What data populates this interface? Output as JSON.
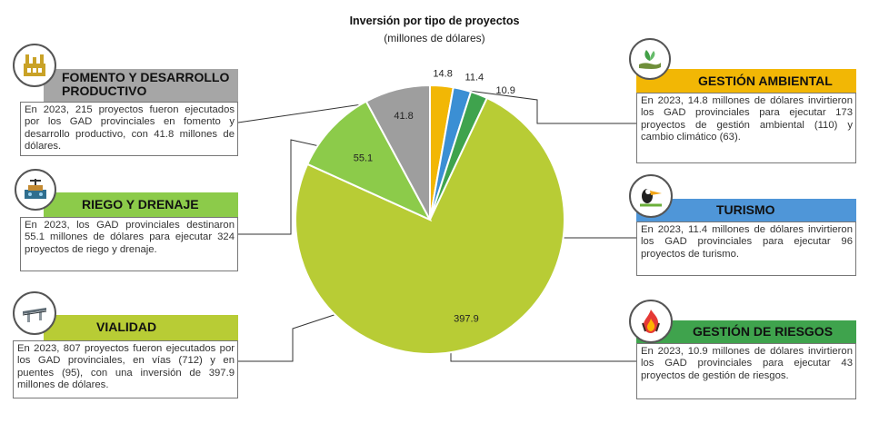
{
  "chart_data": {
    "type": "pie",
    "title": "Inversión por tipo de proyectos",
    "subtitle": "(millones de dólares)",
    "slices": [
      {
        "category": "Gestión Ambiental",
        "value": 14.8,
        "label": "14.8",
        "color": "#F2B705"
      },
      {
        "category": "Turismo",
        "value": 11.4,
        "label": "11.4",
        "color": "#3B8FD4"
      },
      {
        "category": "Gestión de Riesgos",
        "value": 10.9,
        "label": "10.9",
        "color": "#3FA34D"
      },
      {
        "category": "Vialidad",
        "value": 397.9,
        "label": "397.9",
        "color": "#B8CC35"
      },
      {
        "category": "Riego y Drenaje",
        "value": 55.1,
        "label": "55.1",
        "color": "#8CCB4A"
      },
      {
        "category": "Fomento y Desarrollo Productivo",
        "value": 41.8,
        "label": "41.8",
        "color": "#9E9E9E"
      }
    ]
  },
  "panels": {
    "fomento": {
      "title_line1": "FOMENTO Y DESARROLLO",
      "title_line2": "PRODUCTIVO",
      "text": "En 2023, 215 proyectos fueron ejecutados por los GAD provinciales en fomento y desarrollo productivo, con 41.8 millones de dólares.",
      "color": "#A6A6A6",
      "icon": "factory-icon"
    },
    "riego": {
      "title": "RIEGO Y DRENAJE",
      "text": "En 2023, los GAD provinciales destinaron 55.1 millones de dólares para ejecutar 324 proyectos de riego y drenaje.",
      "color": "#8CCB4A",
      "icon": "irrigation-icon"
    },
    "vialidad": {
      "title": "VIALIDAD",
      "text": "En 2023, 807 proyectos fueron ejecutados por los GAD provinciales, en vías (712) y en puentes (95), con una inversión de 397.9 millones de dólares.",
      "color": "#B8CC35",
      "icon": "bridge-icon"
    },
    "ambiental": {
      "title": "GESTIÓN AMBIENTAL",
      "text": "En 2023, 14.8 millones de dólares invirtieron los GAD provinciales para ejecutar 173 proyectos de gestión ambiental (110) y cambio climático (63).",
      "color": "#F2B705",
      "icon": "plant-hand-icon"
    },
    "turismo": {
      "title": "TURISMO",
      "text": "En 2023, 11.4 millones de dólares invirtieron los GAD provinciales para ejecutar 96 proyectos de turismo.",
      "color": "#4F96D8",
      "icon": "toucan-icon"
    },
    "riesgos": {
      "title": "GESTIÓN DE RIESGOS",
      "text": "En 2023, 10.9 millones de dólares invirtieron los GAD provinciales para ejecutar 43 proyectos de gestión de riesgos.",
      "color": "#3FA34D",
      "icon": "fire-icon"
    }
  }
}
